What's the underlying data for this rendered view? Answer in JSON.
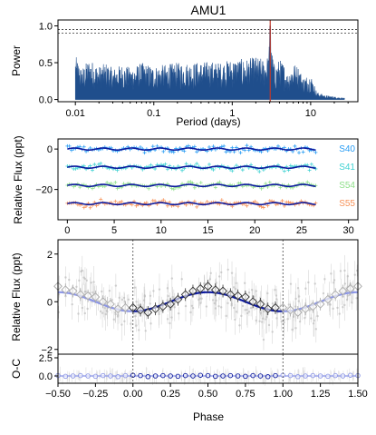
{
  "figure_title": "AMU1",
  "colors": {
    "periodogram": "#1f4e8c",
    "peak_marker": "#c0392b",
    "model_dark": "#0d1a9e",
    "model_light": "#8c96e6",
    "points_gray": "#bdbdbd",
    "sector_colors": [
      "#2a9df4",
      "#3fd2d2",
      "#8fe08a",
      "#f7935a"
    ]
  },
  "chart_data": [
    {
      "type": "line",
      "panel": "periodogram",
      "xscale": "log",
      "xlim": [
        0.006,
        40
      ],
      "ylim": [
        -0.03,
        1.08
      ],
      "xlabel": "Period (days)",
      "ylabel": "Power",
      "xticks": [
        "0.01",
        "0.1",
        "1",
        "10"
      ],
      "yticks": [
        "0.0",
        "0.5",
        "1.0"
      ],
      "reference_lines_y": [
        0.95,
        0.9
      ],
      "peak_period": 3.05,
      "peak_power": 1.0,
      "series": [
        {
          "x": [
            0.01,
            0.012,
            0.015,
            0.02,
            0.025,
            0.03,
            0.04,
            0.05,
            0.07,
            0.1,
            0.15,
            0.2,
            0.3,
            0.5,
            0.7,
            1,
            1.5,
            2,
            2.5,
            2.9,
            3.05,
            3.2,
            3.5,
            4,
            4.5,
            5,
            6,
            7,
            8,
            10,
            12,
            15,
            20,
            27
          ],
          "y": [
            0.6,
            0.42,
            0.55,
            0.45,
            0.5,
            0.42,
            0.48,
            0.43,
            0.5,
            0.45,
            0.48,
            0.5,
            0.5,
            0.52,
            0.5,
            0.55,
            0.55,
            0.58,
            0.55,
            0.6,
            1.0,
            0.65,
            0.45,
            0.55,
            0.5,
            0.35,
            0.5,
            0.45,
            0.3,
            0.35,
            0.1,
            0.06,
            0.04,
            0.02
          ]
        }
      ]
    },
    {
      "type": "scatter",
      "panel": "light-curves",
      "xlim": [
        -1,
        31
      ],
      "ylim": [
        -35,
        5
      ],
      "xlabel": "",
      "ylabel": "Relative Flux (ppt)",
      "xticks": [
        "0",
        "5",
        "10",
        "15",
        "20",
        "25",
        "30"
      ],
      "yticks": [
        "0",
        "−20"
      ],
      "period": 3.05,
      "amplitude": 0.5,
      "series": [
        {
          "name": "S40",
          "offset": 0,
          "x_range": [
            0,
            26.5
          ]
        },
        {
          "name": "S41",
          "offset": -9,
          "x_range": [
            0,
            26.5
          ]
        },
        {
          "name": "S54",
          "offset": -18,
          "x_range": [
            0,
            26.5
          ]
        },
        {
          "name": "S55",
          "offset": -27,
          "x_range": [
            0,
            26.5
          ]
        }
      ]
    },
    {
      "type": "scatter",
      "panel": "phase-folded",
      "xlim": [
        -0.5,
        1.5
      ],
      "ylim": [
        -2.2,
        2.6
      ],
      "xlabel": "",
      "ylabel": "Relative Flux (ppt)",
      "yticks": [
        "−2",
        "0",
        "2"
      ],
      "phase_markers": [
        0.0,
        1.0
      ],
      "binned_phase": [
        0.0,
        0.05,
        0.1,
        0.15,
        0.2,
        0.25,
        0.3,
        0.35,
        0.4,
        0.45,
        0.5,
        0.55,
        0.6,
        0.65,
        0.7,
        0.75,
        0.8,
        0.85,
        0.9,
        0.95
      ],
      "binned_flux": [
        -0.25,
        -0.35,
        -0.45,
        -0.3,
        -0.2,
        -0.1,
        0.1,
        0.3,
        0.45,
        0.55,
        0.65,
        0.5,
        0.45,
        0.3,
        0.25,
        0.2,
        0.0,
        -0.1,
        -0.3,
        -0.25
      ],
      "model_amplitude": 0.4
    },
    {
      "type": "scatter",
      "panel": "residuals",
      "xlim": [
        -0.5,
        1.5
      ],
      "ylim": [
        -1.0,
        3.0
      ],
      "xlabel": "Phase",
      "ylabel": "O-C",
      "xticks": [
        "−0.50",
        "−0.25",
        "0.00",
        "0.25",
        "0.50",
        "0.75",
        "1.00",
        "1.25",
        "1.50"
      ],
      "yticks": [
        "0.0",
        "2.5"
      ],
      "binned_phase": [
        0.0,
        0.05,
        0.1,
        0.15,
        0.2,
        0.25,
        0.3,
        0.35,
        0.4,
        0.45,
        0.5,
        0.55,
        0.6,
        0.65,
        0.7,
        0.75,
        0.8,
        0.85,
        0.9,
        0.95
      ],
      "residuals": [
        0.1,
        0.05,
        -0.1,
        0.0,
        0.05,
        0.0,
        -0.05,
        0.05,
        0.0,
        0.1,
        0.05,
        -0.05,
        0.0,
        0.05,
        0.0,
        -0.05,
        0.05,
        0.0,
        -0.1,
        0.05
      ]
    }
  ]
}
